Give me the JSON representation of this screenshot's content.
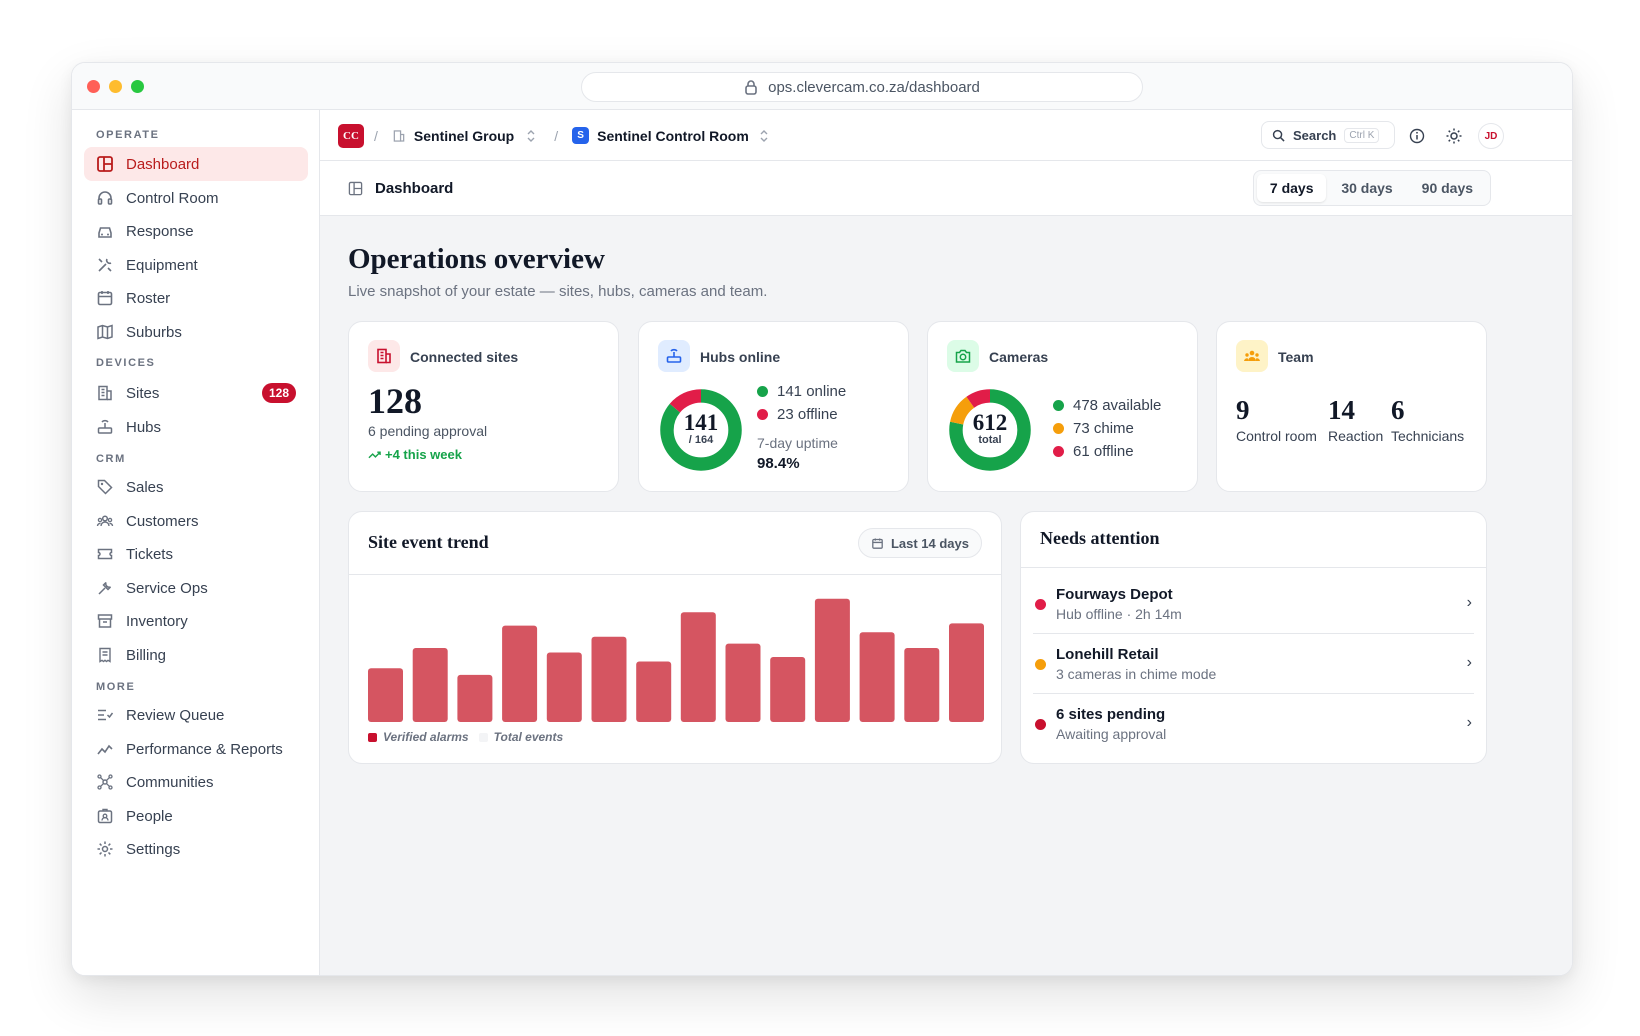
{
  "browser": {
    "url": "ops.clevercam.co.za/dashboard"
  },
  "sidebar": {
    "sections": {
      "operate": "OPERATE",
      "devices": "DEVICES",
      "crm": "CRM",
      "more": "MORE"
    },
    "items": {
      "dashboard": "Dashboard",
      "control_room": "Control Room",
      "response": "Response",
      "equipment": "Equipment",
      "roster": "Roster",
      "suburbs": "Suburbs",
      "sites": "Sites",
      "sites_badge": "128",
      "hubs": "Hubs",
      "sales": "Sales",
      "customers": "Customers",
      "tickets": "Tickets",
      "service_ops": "Service Ops",
      "inventory": "Inventory",
      "billing": "Billing",
      "review_queue": "Review Queue",
      "performance": "Performance & Reports",
      "communities": "Communities",
      "people": "People",
      "settings": "Settings"
    }
  },
  "topbar": {
    "logo": "CC",
    "org": "Sentinel Group",
    "room_badge": "S",
    "room": "Sentinel Control Room",
    "search_label": "Search",
    "search_shortcut": "Ctrl K",
    "avatar": "JD"
  },
  "page": {
    "title": "Dashboard",
    "ranges": [
      "7 days",
      "30 days",
      "90 days"
    ],
    "heading": "Operations overview",
    "subheading": "Live snapshot of your estate — sites, hubs, cameras and team."
  },
  "cards": {
    "sites": {
      "title": "Connected sites",
      "value": "128",
      "note": "6 pending approval",
      "trend": "+4 this week"
    },
    "hubs": {
      "title": "Hubs online",
      "value": "141",
      "total": "/ 164",
      "online": "141 online",
      "offline": "23 offline",
      "uptime_label": "7-day uptime",
      "uptime": "98.4%",
      "online_count": 141,
      "offline_count": 23
    },
    "cameras": {
      "title": "Cameras",
      "value": "612",
      "total_label": "total",
      "available": "478 available",
      "chime": "73 chime",
      "offline": "61 offline",
      "available_count": 478,
      "chime_count": 73,
      "offline_count": 61
    },
    "team": {
      "title": "Team",
      "members": [
        {
          "value": "9",
          "label": "Control room"
        },
        {
          "value": "14",
          "label": "Reaction"
        },
        {
          "value": "6",
          "label": "Technicians"
        }
      ]
    }
  },
  "trend": {
    "title": "Site event trend",
    "range": "Last 14 days",
    "legend": {
      "verified": "Verified alarms",
      "total": "Total events"
    }
  },
  "chart_data": {
    "type": "bar",
    "series": [
      {
        "name": "Verified alarms",
        "values": [
          24,
          33,
          21,
          43,
          31,
          38,
          27,
          49,
          35,
          29,
          55,
          40,
          33,
          44
        ]
      }
    ],
    "colors": {
      "verified": "#d55561",
      "total": "#f3f4f6"
    }
  },
  "attention": {
    "title": "Needs attention",
    "items": [
      {
        "title": "Fourways Depot",
        "desc": "Hub offline · 2h 14m",
        "color": "#e11d48"
      },
      {
        "title": "Lonehill Retail",
        "desc": "3 cameras in chime mode",
        "color": "#f59e0b"
      },
      {
        "title": "6 sites pending",
        "desc": "Awaiting approval",
        "color": "#c8102e"
      }
    ]
  },
  "colors": {
    "brand": "#c8102e",
    "online": "#16a34a",
    "offline": "#e11d48",
    "chime": "#f59e0b"
  }
}
